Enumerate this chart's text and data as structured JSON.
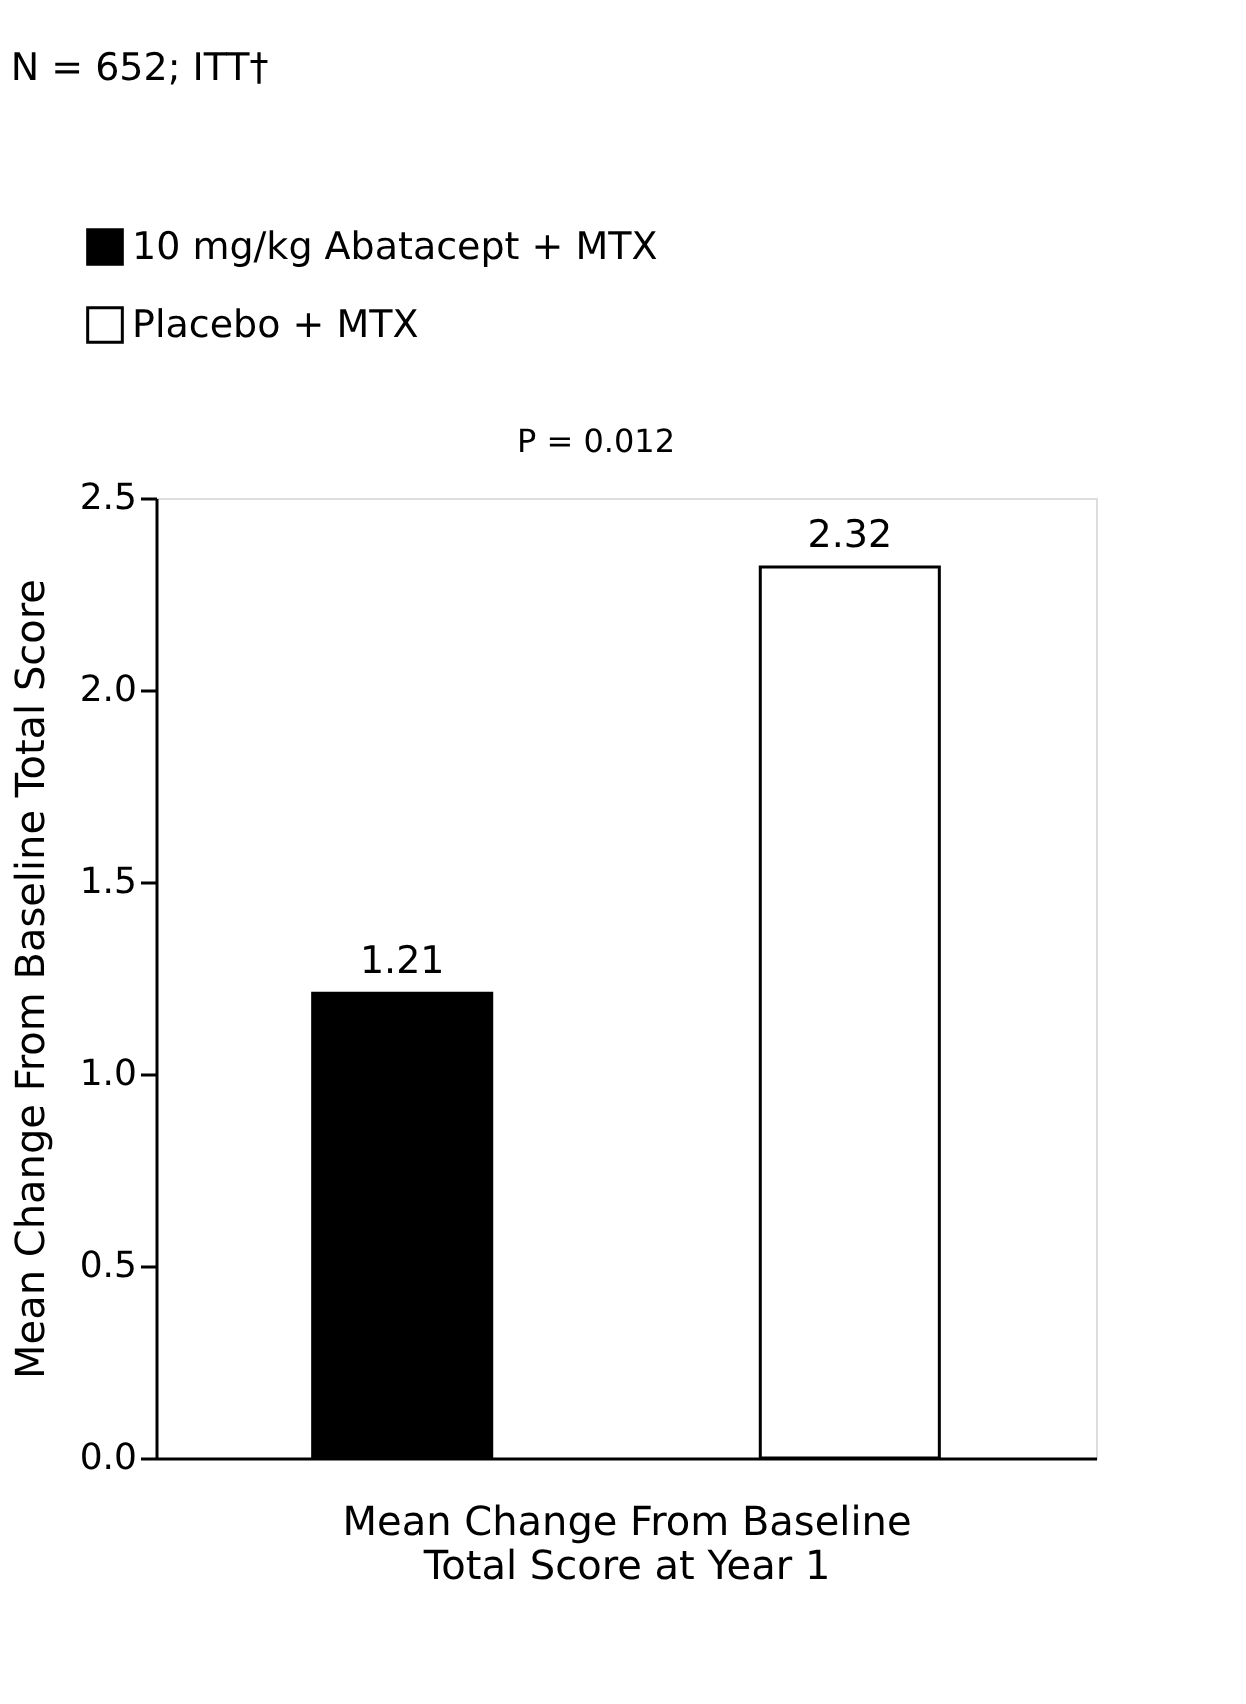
{
  "chart_data": {
    "type": "bar",
    "title": "N = 652; ITT†",
    "xlabel": "Mean Change From Baseline Total Score at Year 1",
    "ylabel": "Mean Change From Baseline Total Score",
    "categories": [
      null
    ],
    "series": [
      {
        "name": "10 mg/kg Abatacept + MTX",
        "color": "#000000",
        "values": [
          1.21
        ]
      },
      {
        "name": "Placebo + MTX",
        "color": "#ffffff",
        "values": [
          2.32
        ]
      }
    ],
    "ylim": [
      0,
      2.5
    ],
    "yticks": [
      {
        "value": 0,
        "label": "0.0"
      },
      {
        "value": 0.5,
        "label": "0.5"
      },
      {
        "value": 1,
        "label": "1.0"
      },
      {
        "value": 1.5,
        "label": "1.5"
      },
      {
        "value": 2,
        "label": "2.0"
      },
      {
        "value": 2.5,
        "label": "2.5"
      }
    ],
    "annotations": [
      "P = 0.012"
    ],
    "data_labels": true,
    "legend": "top left",
    "grid": false,
    "tick_labels": "y"
  }
}
